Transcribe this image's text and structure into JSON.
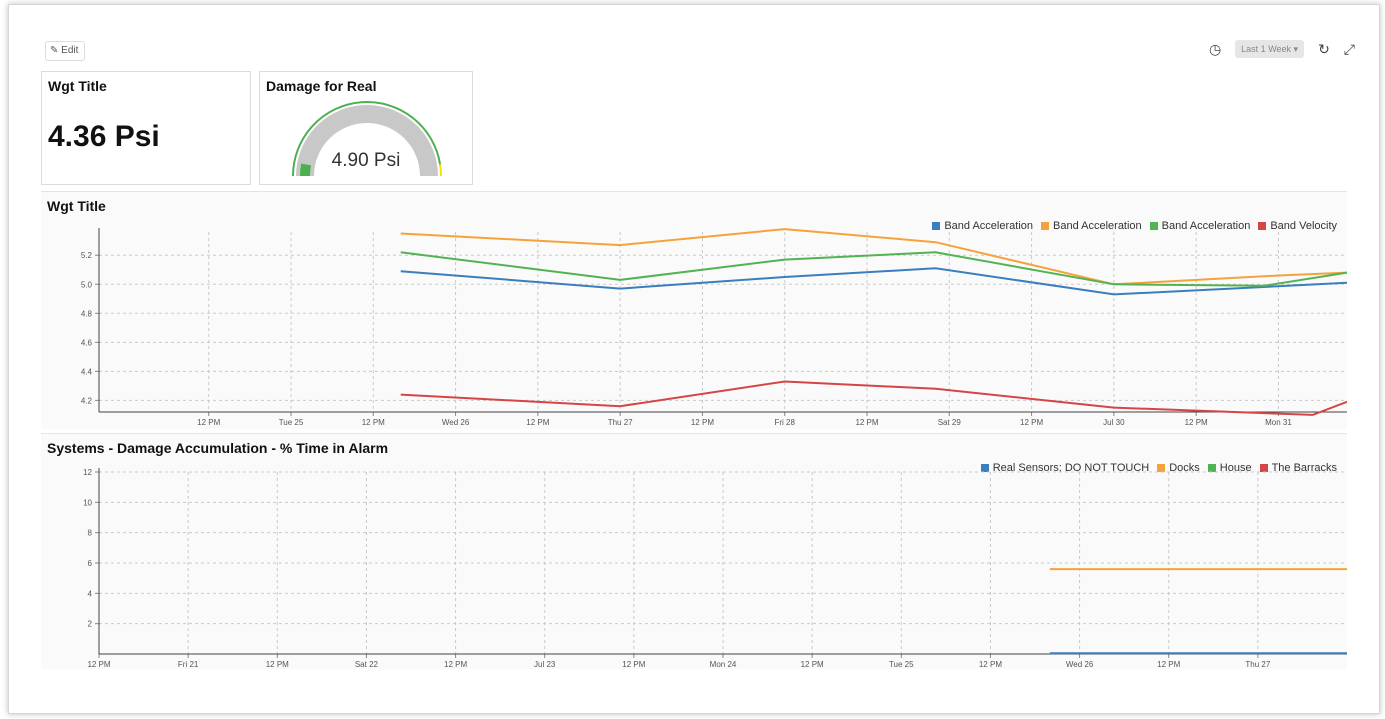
{
  "toolbar": {
    "edit_label": "✎ Edit",
    "range_label": "Last 1 Week ▾",
    "icons": [
      "clock-icon",
      "refresh-icon",
      "fullscreen-icon"
    ]
  },
  "widgets": {
    "stat": {
      "title": "Wgt Title",
      "value": "4.36 Psi"
    },
    "gauge": {
      "title": "Damage for Real",
      "value": "4.90 Psi",
      "fraction": 0.49
    }
  },
  "colors": {
    "blue": "#3a7ebf",
    "orange": "#f5a23c",
    "green": "#52b352",
    "red": "#d64545",
    "gauge_track": "#c8c8c8",
    "gauge_arc": "#4caf50",
    "gauge_warn": "#f2e600"
  },
  "chart_data": [
    {
      "type": "line",
      "title": "Wgt Title",
      "ylabel": "",
      "ylim": [
        4.12,
        5.36
      ],
      "y_ticks": [
        "4.2",
        "4.4",
        "4.6",
        "4.8",
        "5.0",
        "5.2"
      ],
      "x_tick_labels": [
        "12 PM",
        "Tue 25",
        "12 PM",
        "Wed 26",
        "12 PM",
        "Thu 27",
        "12 PM",
        "Fri 28",
        "12 PM",
        "Sat 29",
        "12 PM",
        "Jul 30",
        "12 PM",
        "Mon 31"
      ],
      "x_ticks": [
        -36,
        -24,
        -12,
        0,
        12,
        24,
        36,
        48,
        60,
        72,
        84,
        96,
        108,
        120
      ],
      "xlim": [
        -52,
        130
      ],
      "legend": [
        "Band Acceleration",
        "Band Acceleration",
        "Band Acceleration",
        "Band Velocity"
      ],
      "series": [
        {
          "name": "Band Acceleration",
          "color": "#3a7ebf",
          "x": [
            -8,
            24,
            48,
            70,
            96,
            130
          ],
          "y": [
            5.09,
            4.97,
            5.05,
            5.11,
            4.93,
            5.01
          ]
        },
        {
          "name": "Band Acceleration",
          "color": "#f5a23c",
          "x": [
            -8,
            24,
            48,
            70,
            96,
            120,
            130
          ],
          "y": [
            5.35,
            5.27,
            5.38,
            5.29,
            5.0,
            5.06,
            5.08
          ]
        },
        {
          "name": "Band Acceleration",
          "color": "#52b352",
          "x": [
            -8,
            24,
            48,
            70,
            96,
            118,
            130
          ],
          "y": [
            5.22,
            5.03,
            5.17,
            5.22,
            5.0,
            4.99,
            5.08
          ]
        },
        {
          "name": "Band Velocity",
          "color": "#d64545",
          "x": [
            -8,
            24,
            48,
            70,
            96,
            125,
            130
          ],
          "y": [
            4.24,
            4.16,
            4.33,
            4.28,
            4.15,
            4.1,
            4.19
          ]
        }
      ]
    },
    {
      "type": "line",
      "title": "Systems - Damage Accumulation - % Time in Alarm",
      "ylabel": "",
      "ylim": [
        0,
        12
      ],
      "y_ticks": [
        "2",
        "4",
        "6",
        "8",
        "10",
        "12"
      ],
      "x_tick_labels": [
        "12 PM",
        "Fri 21",
        "12 PM",
        "Sat 22",
        "12 PM",
        "Jul 23",
        "12 PM",
        "Mon 24",
        "12 PM",
        "Tue 25",
        "12 PM",
        "Wed 26",
        "12 PM",
        "Thu 27"
      ],
      "x_ticks": [
        0,
        12,
        24,
        36,
        48,
        60,
        72,
        84,
        96,
        108,
        120,
        132,
        144,
        156
      ],
      "xlim": [
        0,
        168
      ],
      "legend": [
        "Real Sensors; DO NOT TOUCH",
        "Docks",
        "House",
        "The Barracks"
      ],
      "series": [
        {
          "name": "Real Sensors; DO NOT TOUCH",
          "color": "#3a7ebf",
          "x": [
            128,
            168
          ],
          "y": [
            0.05,
            0.05
          ]
        },
        {
          "name": "Docks",
          "color": "#f5a23c",
          "x": [
            128,
            168
          ],
          "y": [
            5.6,
            5.6
          ]
        },
        {
          "name": "House",
          "color": "#52b352",
          "x": [],
          "y": []
        },
        {
          "name": "The Barracks",
          "color": "#d64545",
          "x": [],
          "y": []
        }
      ]
    }
  ]
}
